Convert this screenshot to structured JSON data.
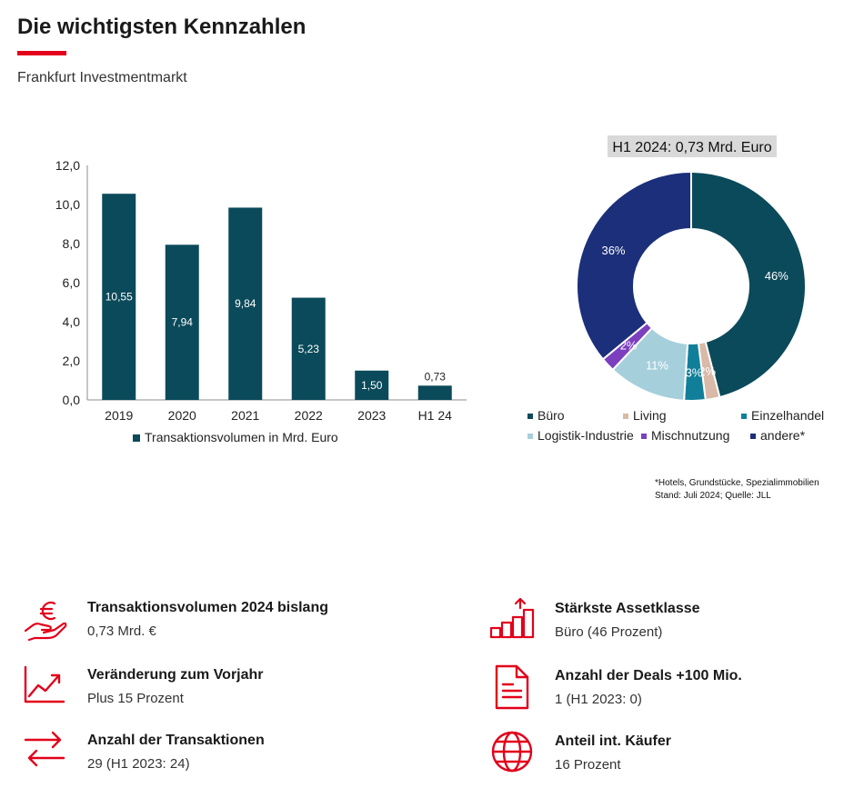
{
  "header": {
    "title": "Die wichtigsten Kennzahlen",
    "subtitle": "Frankfurt Investmentmarkt"
  },
  "colors": {
    "accent_red": "#e2001a",
    "bar": "#0b4a5a",
    "buero": "#0b4a5a",
    "living": "#d9b9a7",
    "einzelhandel": "#127f9a",
    "logistik": "#a6cfdc",
    "mischnutzung": "#7b3fbf",
    "andere": "#1c2f7a"
  },
  "chart_data": [
    {
      "type": "bar",
      "categories": [
        "2019",
        "2020",
        "2021",
        "2022",
        "2023",
        "H1 24"
      ],
      "values": [
        10.55,
        7.94,
        9.84,
        5.23,
        1.5,
        0.73
      ],
      "value_labels": [
        "10,55",
        "7,94",
        "9,84",
        "5,23",
        "1,50",
        "0,73"
      ],
      "yticks": [
        "0,0",
        "2,0",
        "4,0",
        "6,0",
        "8,0",
        "10,0",
        "12,0"
      ],
      "ylim": [
        0,
        12
      ],
      "legend": [
        "Transaktionsvolumen in Mrd. Euro"
      ],
      "legend_position": "bottom",
      "grid": false
    },
    {
      "type": "pie",
      "donut": true,
      "title": "H1 2024: 0,73 Mrd. Euro",
      "slices": [
        {
          "name": "Büro",
          "value": 46,
          "label": "46%",
          "color_key": "buero"
        },
        {
          "name": "Living",
          "value": 2,
          "label": "2%",
          "color_key": "living"
        },
        {
          "name": "Einzelhandel",
          "value": 3,
          "label": "3%",
          "color_key": "einzelhandel"
        },
        {
          "name": "Logistik-Industrie",
          "value": 11,
          "label": "11%",
          "color_key": "logistik"
        },
        {
          "name": "Mischnutzung",
          "value": 2,
          "label": "2%",
          "color_key": "mischnutzung"
        },
        {
          "name": "andere*",
          "value": 36,
          "label": "36%",
          "color_key": "andere"
        }
      ],
      "legend_position": "bottom"
    }
  ],
  "footnote": {
    "line1": "*Hotels, Grundstücke, Spezialimmobilien",
    "line2": "Stand: Juli 2024; Quelle: JLL"
  },
  "kpis": [
    {
      "icon": "euro-hand-icon",
      "label": "Transaktionsvolumen 2024 bislang",
      "value": "0,73 Mrd. €"
    },
    {
      "icon": "trend-chart-icon",
      "label": "Veränderung zum Vorjahr",
      "value": "Plus 15 Prozent"
    },
    {
      "icon": "exchange-arrows-icon",
      "label": "Anzahl der Transaktionen",
      "value": "29 (H1 2023: 24)"
    },
    {
      "icon": "bar-growth-icon",
      "label": "Stärkste Assetklasse",
      "value": "Büro (46 Prozent)"
    },
    {
      "icon": "document-icon",
      "label": "Anzahl der Deals +100 Mio.",
      "value": "1 (H1 2023: 0)"
    },
    {
      "icon": "globe-icon",
      "label": "Anteil int. Käufer",
      "value": "16 Prozent"
    }
  ]
}
